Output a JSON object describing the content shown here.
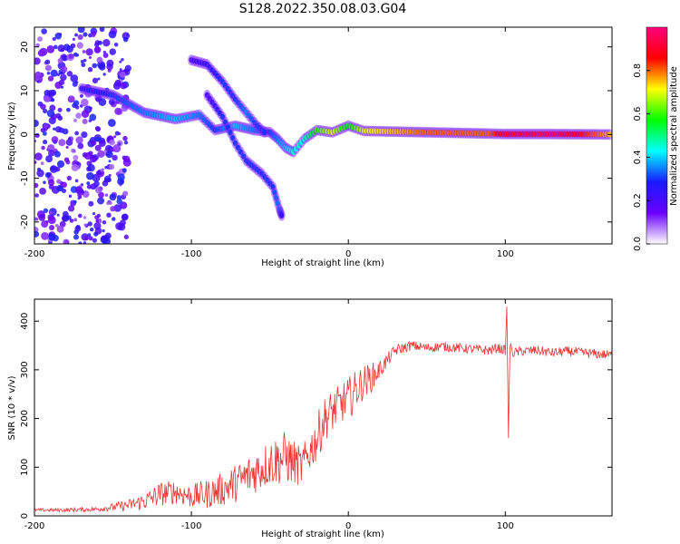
{
  "figure_title": "S128.2022.350.08.03.G04",
  "chart_data": [
    {
      "type": "heatmap",
      "title": "",
      "xlabel": "Height of straight line (km)",
      "ylabel": "Frequency (Hz)",
      "xlim": [
        -200,
        168
      ],
      "ylim": [
        -25,
        24.5
      ],
      "x_ticks": [
        -200,
        -100,
        0,
        100
      ],
      "y_ticks": [
        -20,
        -10,
        0,
        10,
        20
      ],
      "colorbar": {
        "label": "Normalized spectral amplitude",
        "range": [
          0.0,
          1.0
        ],
        "ticks": [
          0.0,
          0.2,
          0.4,
          0.6,
          0.8
        ],
        "colormap": "hsv-like",
        "stops": [
          "#ffffff",
          "#6a00ff",
          "#1a1aff",
          "#00ffff",
          "#00ff00",
          "#ffff00",
          "#ff0000",
          "#ff0080"
        ]
      },
      "ridges": [
        {
          "name": "main",
          "points": [
            [
              -170,
              10.5
            ],
            [
              -150,
              9
            ],
            [
              -130,
              5
            ],
            [
              -110,
              3.5
            ],
            [
              -95,
              4.5
            ],
            [
              -85,
              1
            ],
            [
              -72,
              2
            ],
            [
              -60,
              1
            ],
            [
              -50,
              0.5
            ],
            [
              -45,
              -1
            ],
            [
              -40,
              -3
            ],
            [
              -35,
              -4
            ],
            [
              -28,
              -1
            ],
            [
              -20,
              1
            ],
            [
              -10,
              0.5
            ],
            [
              0,
              2
            ],
            [
              10,
              0.8
            ],
            [
              50,
              0.5
            ],
            [
              90,
              0.2
            ],
            [
              100,
              0.1
            ],
            [
              130,
              0.1
            ],
            [
              168,
              0
            ]
          ],
          "amplitude": [
            0.25,
            0.3,
            0.35,
            0.4,
            0.35,
            0.3,
            0.4,
            0.35,
            0.3,
            0.35,
            0.4,
            0.45,
            0.45,
            0.6,
            0.7,
            0.55,
            0.7,
            0.8,
            0.8,
            0.9,
            0.95,
            0.75
          ]
        },
        {
          "name": "upper branch",
          "points": [
            [
              -100,
              17
            ],
            [
              -90,
              16
            ],
            [
              -80,
              12
            ],
            [
              -72,
              8
            ],
            [
              -65,
              5
            ],
            [
              -58,
              2
            ],
            [
              -52,
              0
            ]
          ],
          "amplitude": [
            0.2,
            0.25,
            0.3,
            0.3,
            0.35,
            0.3,
            0.3
          ]
        },
        {
          "name": "lower branch",
          "points": [
            [
              -90,
              9
            ],
            [
              -80,
              4
            ],
            [
              -72,
              -2
            ],
            [
              -65,
              -6
            ],
            [
              -55,
              -9
            ],
            [
              -48,
              -12
            ],
            [
              -44,
              -17
            ],
            [
              -42,
              -19
            ]
          ],
          "amplitude": [
            0.2,
            0.3,
            0.3,
            0.3,
            0.3,
            0.3,
            0.35,
            0.2
          ]
        }
      ],
      "noise_region": {
        "x": [
          -200,
          -140
        ],
        "y": [
          -25,
          24.5
        ]
      }
    },
    {
      "type": "line",
      "title": "",
      "xlabel": "Height of straight line (km)",
      "ylabel": "SNR (10 * v/v)",
      "xlim": [
        -200,
        168
      ],
      "ylim": [
        0,
        445
      ],
      "x_ticks": [
        -200,
        -100,
        0,
        100
      ],
      "y_ticks": [
        0,
        100,
        200,
        300,
        400
      ],
      "color": "#ee3333",
      "series": [
        {
          "x": [
            -200,
            -180,
            -160,
            -150,
            -140,
            -130,
            -120,
            -110,
            -100,
            -90,
            -80,
            -70,
            -60,
            -50,
            -40,
            -30,
            -25,
            -20,
            -15,
            -10,
            -5,
            0,
            5,
            10,
            15,
            20,
            25,
            30,
            40,
            50,
            60,
            70,
            80,
            90,
            95,
            100,
            101,
            102,
            103,
            105,
            110,
            120,
            130,
            140,
            150,
            160,
            168
          ],
          "values": [
            12,
            12,
            14,
            18,
            22,
            30,
            45,
            50,
            40,
            45,
            55,
            70,
            90,
            110,
            120,
            100,
            130,
            160,
            200,
            215,
            230,
            240,
            260,
            275,
            285,
            300,
            320,
            340,
            350,
            345,
            348,
            345,
            342,
            340,
            345,
            340,
            430,
            160,
            350,
            335,
            338,
            340,
            335,
            338,
            335,
            332,
            330
          ],
          "noise": [
            3,
            4,
            5,
            8,
            12,
            18,
            25,
            25,
            25,
            30,
            35,
            40,
            45,
            50,
            55,
            40,
            40,
            50,
            45,
            45,
            40,
            45,
            40,
            35,
            30,
            20,
            15,
            12,
            10,
            10,
            10,
            10,
            10,
            10,
            10,
            10,
            0,
            0,
            8,
            10,
            10,
            10,
            10,
            10,
            10,
            10,
            10
          ]
        }
      ]
    }
  ]
}
